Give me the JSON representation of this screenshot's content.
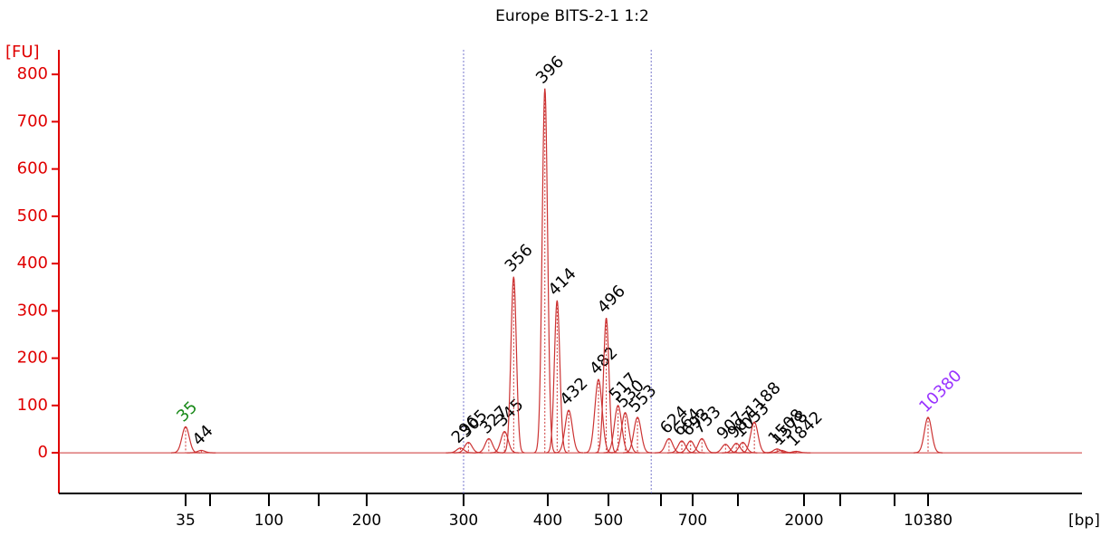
{
  "chart_data": {
    "type": "electropherogram",
    "title": "Europe BITS-2-1 1:2",
    "y_label": "[FU]",
    "x_label": "[bp]",
    "ylim": [
      -86,
      852
    ],
    "yticks": [
      0,
      100,
      200,
      300,
      400,
      500,
      600,
      700,
      800
    ],
    "xscale": "ladder",
    "xlim": [
      5.5,
      63000
    ],
    "xticks": [
      35,
      100,
      200,
      300,
      400,
      500,
      700,
      2000,
      10380
    ],
    "xminor_ticks": [
      50,
      150,
      600,
      1000,
      3000,
      7000
    ],
    "region": [
      300,
      580
    ],
    "axis_color": "#e00000",
    "trace_color": "#cc3333",
    "label_color": "#000000",
    "peaks": [
      {
        "size": 35,
        "fu": 55,
        "color": "#1a8a1a"
      },
      {
        "size": 44,
        "fu": 5
      },
      {
        "size": 296,
        "fu": 10
      },
      {
        "size": 305,
        "fu": 22
      },
      {
        "size": 327,
        "fu": 30
      },
      {
        "size": 345,
        "fu": 45
      },
      {
        "size": 356,
        "fu": 372
      },
      {
        "size": 396,
        "fu": 770
      },
      {
        "size": 414,
        "fu": 322
      },
      {
        "size": 432,
        "fu": 90
      },
      {
        "size": 482,
        "fu": 155
      },
      {
        "size": 496,
        "fu": 285
      },
      {
        "size": 517,
        "fu": 100
      },
      {
        "size": 530,
        "fu": 85
      },
      {
        "size": 553,
        "fu": 75
      },
      {
        "size": 624,
        "fu": 30
      },
      {
        "size": 664,
        "fu": 25
      },
      {
        "size": 693,
        "fu": 25
      },
      {
        "size": 753,
        "fu": 30
      },
      {
        "size": 907,
        "fu": 18
      },
      {
        "size": 987,
        "fu": 20
      },
      {
        "size": 1053,
        "fu": 22
      },
      {
        "size": 1188,
        "fu": 65
      },
      {
        "size": 1508,
        "fu": 8
      },
      {
        "size": 1578,
        "fu": 5
      },
      {
        "size": 1842,
        "fu": 3
      },
      {
        "size": 10380,
        "fu": 75,
        "color": "#9933ff"
      }
    ]
  }
}
